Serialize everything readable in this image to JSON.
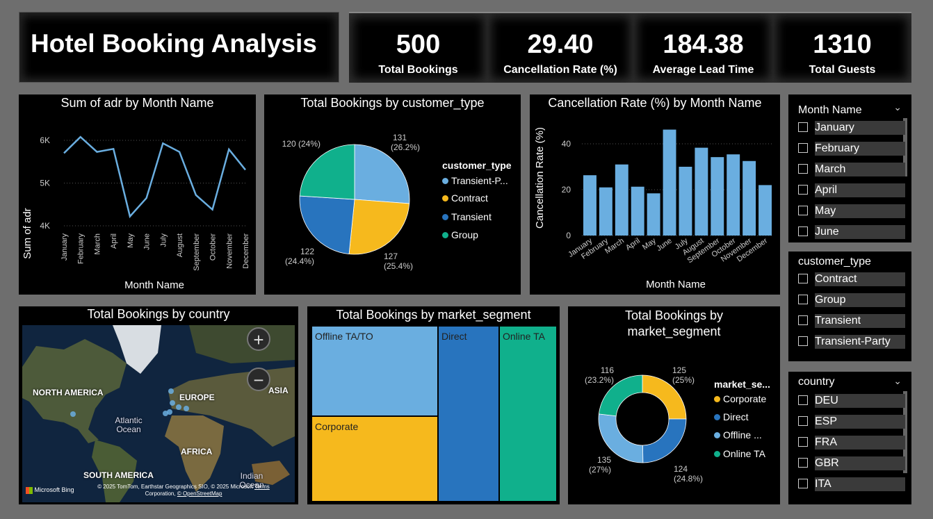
{
  "header": {
    "title": "Hotel Booking Analysis"
  },
  "kpis": [
    {
      "value": "500",
      "label": "Total Bookings"
    },
    {
      "value": "29.40",
      "label": "Cancellation Rate (%)"
    },
    {
      "value": "184.38",
      "label": "Average Lead Time"
    },
    {
      "value": "1310",
      "label": "Total Guests"
    }
  ],
  "line_chart": {
    "title": "Sum of adr by Month Name",
    "xlabel": "Month Name",
    "ylabel": "Sum of adr"
  },
  "pie_chart": {
    "title": "Total Bookings by customer_type",
    "legend_title": "customer_type",
    "legend": [
      "Transient-P...",
      "Contract",
      "Transient",
      "Group"
    ]
  },
  "bar_chart": {
    "title": "Cancellation Rate (%) by Month Name",
    "xlabel": "Month Name",
    "ylabel": "Cancellation Rate (%)"
  },
  "map": {
    "title": "Total Bookings by country",
    "labels": {
      "na": "NORTH AMERICA",
      "eu": "EUROPE",
      "asia": "ASIA",
      "africa": "AFRICA",
      "sa": "SOUTH AMERICA",
      "atl1": "Atlantic",
      "atl2": "Ocean",
      "ind1": "Indian",
      "ind2": "Ocean"
    },
    "bing": "Microsoft Bing",
    "credit1": "© 2025 TomTom, Earthstar Geographics SIO, © 2025 Microsoft",
    "credit_terms": "Terms",
    "credit2": "Corporation,",
    "credit_osm": "© OpenStreetMap",
    "zoom_in": "+",
    "zoom_out": "−"
  },
  "treemap": {
    "title": "Total Bookings by market_segment",
    "tiles": [
      "Offline TA/TO",
      "Direct",
      "Online TA",
      "Corporate"
    ]
  },
  "donut": {
    "title_line1": "Total Bookings by",
    "title_line2": "market_segment",
    "legend_title": "market_se...",
    "legend": [
      "Corporate",
      "Direct",
      "Offline ...",
      "Online TA"
    ]
  },
  "slicers": {
    "month": {
      "title": "Month Name",
      "items": [
        "January",
        "February",
        "March",
        "April",
        "May",
        "June"
      ]
    },
    "customer_type": {
      "title": "customer_type",
      "items": [
        "Contract",
        "Group",
        "Transient",
        "Transient-Party"
      ]
    },
    "country": {
      "title": "country",
      "items": [
        "DEU",
        "ESP",
        "FRA",
        "GBR",
        "ITA"
      ]
    }
  },
  "colors": {
    "light_blue": "#6aaee0",
    "yellow": "#f6b91d",
    "blue": "#2874be",
    "teal": "#10b08c"
  },
  "chart_data": [
    {
      "type": "line",
      "title": "Sum of adr by Month Name",
      "xlabel": "Month Name",
      "ylabel": "Sum of adr",
      "categories": [
        "January",
        "February",
        "March",
        "April",
        "May",
        "June",
        "July",
        "August",
        "September",
        "October",
        "November",
        "December"
      ],
      "y_ticks": [
        "4K",
        "5K",
        "6K"
      ],
      "ylim": [
        4000,
        6000
      ],
      "values": [
        5700,
        6080,
        5730,
        5800,
        4220,
        4650,
        5930,
        5730,
        4720,
        4380,
        5790,
        5310
      ]
    },
    {
      "type": "pie",
      "title": "Total Bookings by customer_type",
      "labels": [
        "Transient-Party",
        "Contract",
        "Transient",
        "Group"
      ],
      "values": [
        131,
        127,
        122,
        120
      ],
      "data_labels": [
        "131 (26.2%)",
        "127 (25.4%)",
        "122 (24.4%)",
        "120 (24%)"
      ]
    },
    {
      "type": "bar",
      "title": "Cancellation Rate (%) by Month Name",
      "xlabel": "Month Name",
      "ylabel": "Cancellation Rate (%)",
      "categories": [
        "January",
        "February",
        "March",
        "April",
        "May",
        "June",
        "July",
        "August",
        "September",
        "October",
        "November",
        "December"
      ],
      "y_ticks": [
        "0",
        "20",
        "40"
      ],
      "ylim": [
        0,
        50
      ],
      "values": [
        26.3,
        21.0,
        31.0,
        21.3,
        18.4,
        46.2,
        30.0,
        38.3,
        34.2,
        35.4,
        32.5,
        22.0
      ]
    },
    {
      "type": "treemap",
      "title": "Total Bookings by market_segment",
      "labels": [
        "Offline TA/TO",
        "Corporate",
        "Direct",
        "Online TA"
      ],
      "values": [
        135,
        125,
        124,
        116
      ]
    },
    {
      "type": "pie",
      "subtype": "donut",
      "title": "Total Bookings by market_segment",
      "labels": [
        "Corporate",
        "Direct",
        "Offline TA/TO",
        "Online TA"
      ],
      "values": [
        125,
        124,
        135,
        116
      ],
      "data_labels": [
        "125 (25%)",
        "124 (24.8%)",
        "135 (27%)",
        "116 (23.2%)"
      ]
    }
  ]
}
